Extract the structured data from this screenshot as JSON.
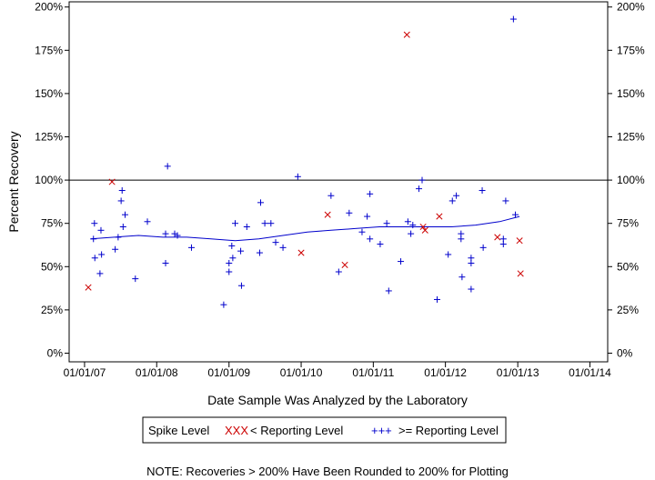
{
  "chart_data": {
    "type": "scatter",
    "xlabel": "Date Sample Was Analyzed by the Laboratory",
    "ylabel": "Percent Recovery",
    "x_ticks": [
      "01/01/07",
      "01/01/08",
      "01/01/09",
      "01/01/10",
      "01/01/11",
      "01/01/12",
      "01/01/13",
      "01/01/14"
    ],
    "y_ticks": [
      "0%",
      "25%",
      "50%",
      "75%",
      "100%",
      "125%",
      "150%",
      "175%",
      "200%"
    ],
    "xlim": [
      "2006-10-15",
      "2014-04-01"
    ],
    "ylim": [
      -5,
      203
    ],
    "reference_line": 100,
    "grid": false,
    "legend": {
      "title": "Spike Level",
      "position": "bottom",
      "entries": [
        {
          "label": "< Reporting Level",
          "marker": "x",
          "color": "#cc0000",
          "sample": "XXX"
        },
        {
          "label": ">= Reporting Level",
          "marker": "+",
          "color": "#0000cc",
          "sample": "+++"
        }
      ]
    },
    "note": "NOTE: Recoveries > 200% Have Been Rounded to 200% for Plotting",
    "series": [
      {
        "name": ">= Reporting Level",
        "marker": "+",
        "color": "#0000cc",
        "points": [
          [
            "2007-02-15",
            66
          ],
          [
            "2007-02-20",
            75
          ],
          [
            "2007-02-22",
            55
          ],
          [
            "2007-03-20",
            46
          ],
          [
            "2007-03-25",
            71
          ],
          [
            "2007-03-28",
            57
          ],
          [
            "2007-06-05",
            60
          ],
          [
            "2007-06-20",
            67
          ],
          [
            "2007-07-05",
            88
          ],
          [
            "2007-07-10",
            94
          ],
          [
            "2007-07-15",
            73
          ],
          [
            "2007-07-25",
            80
          ],
          [
            "2007-09-15",
            43
          ],
          [
            "2007-11-15",
            76
          ],
          [
            "2008-02-15",
            52
          ],
          [
            "2008-02-15",
            69
          ],
          [
            "2008-02-25",
            108
          ],
          [
            "2008-04-01",
            69
          ],
          [
            "2008-04-15",
            68
          ],
          [
            "2008-06-25",
            61
          ],
          [
            "2008-12-05",
            28
          ],
          [
            "2009-01-01",
            52
          ],
          [
            "2009-01-01",
            47
          ],
          [
            "2009-01-15",
            62
          ],
          [
            "2009-01-20",
            55
          ],
          [
            "2009-02-01",
            75
          ],
          [
            "2009-03-01",
            59
          ],
          [
            "2009-03-05",
            39
          ],
          [
            "2009-04-01",
            73
          ],
          [
            "2009-06-05",
            58
          ],
          [
            "2009-06-10",
            87
          ],
          [
            "2009-07-01",
            75
          ],
          [
            "2009-08-01",
            75
          ],
          [
            "2009-08-25",
            64
          ],
          [
            "2009-10-01",
            61
          ],
          [
            "2009-12-15",
            102
          ],
          [
            "2010-06-01",
            91
          ],
          [
            "2010-07-10",
            47
          ],
          [
            "2010-09-01",
            81
          ],
          [
            "2010-11-05",
            70
          ],
          [
            "2010-12-01",
            79
          ],
          [
            "2010-12-15",
            92
          ],
          [
            "2010-12-15",
            66
          ],
          [
            "2011-02-05",
            63
          ],
          [
            "2011-03-10",
            75
          ],
          [
            "2011-03-20",
            36
          ],
          [
            "2011-05-20",
            53
          ],
          [
            "2011-06-25",
            76
          ],
          [
            "2011-07-10",
            69
          ],
          [
            "2011-07-20",
            74
          ],
          [
            "2011-08-20",
            95
          ],
          [
            "2011-09-05",
            100
          ],
          [
            "2011-11-20",
            31
          ],
          [
            "2012-01-15",
            57
          ],
          [
            "2012-02-05",
            88
          ],
          [
            "2012-02-25",
            91
          ],
          [
            "2012-03-20",
            66
          ],
          [
            "2012-03-20",
            69
          ],
          [
            "2012-03-25",
            44
          ],
          [
            "2012-05-10",
            37
          ],
          [
            "2012-05-10",
            52
          ],
          [
            "2012-05-10",
            55
          ],
          [
            "2012-07-05",
            94
          ],
          [
            "2012-07-10",
            61
          ],
          [
            "2012-10-20",
            66
          ],
          [
            "2012-10-20",
            63
          ],
          [
            "2012-11-01",
            88
          ],
          [
            "2012-12-10",
            193
          ],
          [
            "2012-12-20",
            80
          ]
        ]
      },
      {
        "name": "< Reporting Level",
        "marker": "x",
        "color": "#cc0000",
        "points": [
          [
            "2007-01-20",
            38
          ],
          [
            "2007-05-20",
            99
          ],
          [
            "2010-01-01",
            58
          ],
          [
            "2010-05-15",
            80
          ],
          [
            "2010-08-10",
            51
          ],
          [
            "2011-06-20",
            184
          ],
          [
            "2011-09-10",
            73
          ],
          [
            "2011-09-20",
            71
          ],
          [
            "2011-12-01",
            79
          ],
          [
            "2012-09-20",
            67
          ],
          [
            "2013-01-10",
            65
          ],
          [
            "2013-01-15",
            46
          ]
        ]
      }
    ],
    "trend": {
      "color": "#0000cc",
      "points": [
        [
          "2007-02-01",
          66
        ],
        [
          "2007-06-01",
          67
        ],
        [
          "2007-10-01",
          68
        ],
        [
          "2008-02-01",
          67
        ],
        [
          "2008-06-01",
          67
        ],
        [
          "2008-10-01",
          66
        ],
        [
          "2009-02-01",
          65
        ],
        [
          "2009-06-01",
          66
        ],
        [
          "2009-10-01",
          68
        ],
        [
          "2010-02-01",
          70
        ],
        [
          "2010-06-01",
          71
        ],
        [
          "2010-10-01",
          72
        ],
        [
          "2011-02-01",
          73
        ],
        [
          "2011-06-01",
          73
        ],
        [
          "2011-10-01",
          73
        ],
        [
          "2012-02-01",
          73
        ],
        [
          "2012-06-01",
          74
        ],
        [
          "2012-10-01",
          76
        ],
        [
          "2013-01-10",
          79
        ]
      ]
    }
  }
}
